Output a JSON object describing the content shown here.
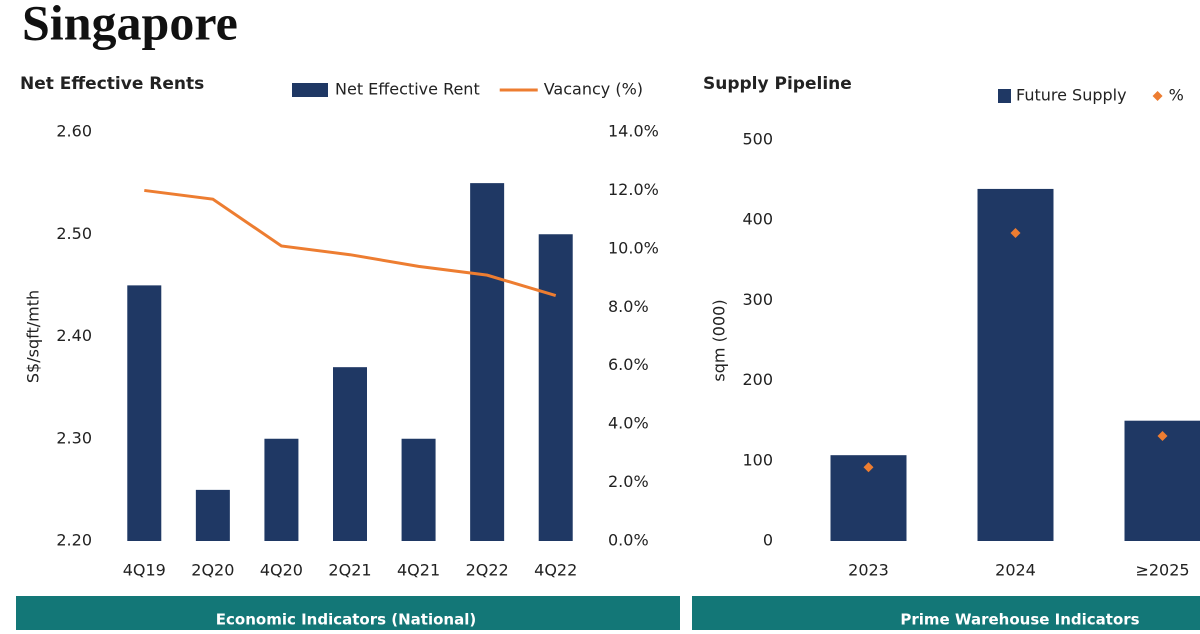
{
  "page_title": "Singapore",
  "footer": [
    "Economic Indicators (National)",
    "Prime Warehouse Indicators"
  ],
  "chart_data": [
    {
      "type": "bar",
      "title": "Net Effective Rents",
      "y_label": "S$/sqft/mth",
      "categories": [
        "4Q19",
        "2Q20",
        "4Q20",
        "2Q21",
        "4Q21",
        "2Q22",
        "4Q22"
      ],
      "series": [
        {
          "name": "Net Effective Rent",
          "type": "bar",
          "color": "#1f3864",
          "values": [
            2.45,
            2.25,
            2.3,
            2.37,
            2.3,
            2.55,
            2.5
          ]
        },
        {
          "name": "Vacancy (%)",
          "type": "line",
          "axis": "y2",
          "color": "#ed7d31",
          "values": [
            12.0,
            11.7,
            10.1,
            9.8,
            9.4,
            9.1,
            8.4
          ]
        }
      ],
      "ylim": [
        2.2,
        2.6
      ],
      "yticks": [
        {
          "value": 2.2,
          "label": "2.20"
        },
        {
          "value": 2.3,
          "label": "2.30"
        },
        {
          "value": 2.4,
          "label": "2.40"
        },
        {
          "value": 2.5,
          "label": "2.50"
        },
        {
          "value": 2.6,
          "label": "2.60"
        }
      ],
      "y2lim": [
        0,
        14
      ],
      "y2ticks": [
        {
          "value": 0,
          "label": "0.0%"
        },
        {
          "value": 2,
          "label": "2.0%"
        },
        {
          "value": 4,
          "label": "4.0%"
        },
        {
          "value": 6,
          "label": "6.0%"
        },
        {
          "value": 8,
          "label": "8.0%"
        },
        {
          "value": 10,
          "label": "10.0%"
        },
        {
          "value": 12,
          "label": "12.0%"
        },
        {
          "value": 14,
          "label": "14.0%"
        }
      ]
    },
    {
      "type": "bar",
      "title": "Supply Pipeline",
      "y_label": "sqm (000)",
      "categories": [
        "2023",
        "2024",
        "≥2025"
      ],
      "series": [
        {
          "name": "Future Supply",
          "type": "bar",
          "color": "#1f3864",
          "values": [
            107,
            439,
            150
          ]
        },
        {
          "name": "%",
          "type": "scatter",
          "color": "#ed7d31",
          "values": [
            92,
            384,
            131
          ]
        }
      ],
      "ylim": [
        0,
        500
      ],
      "yticks": [
        0,
        100,
        200,
        300,
        400,
        500
      ]
    }
  ]
}
